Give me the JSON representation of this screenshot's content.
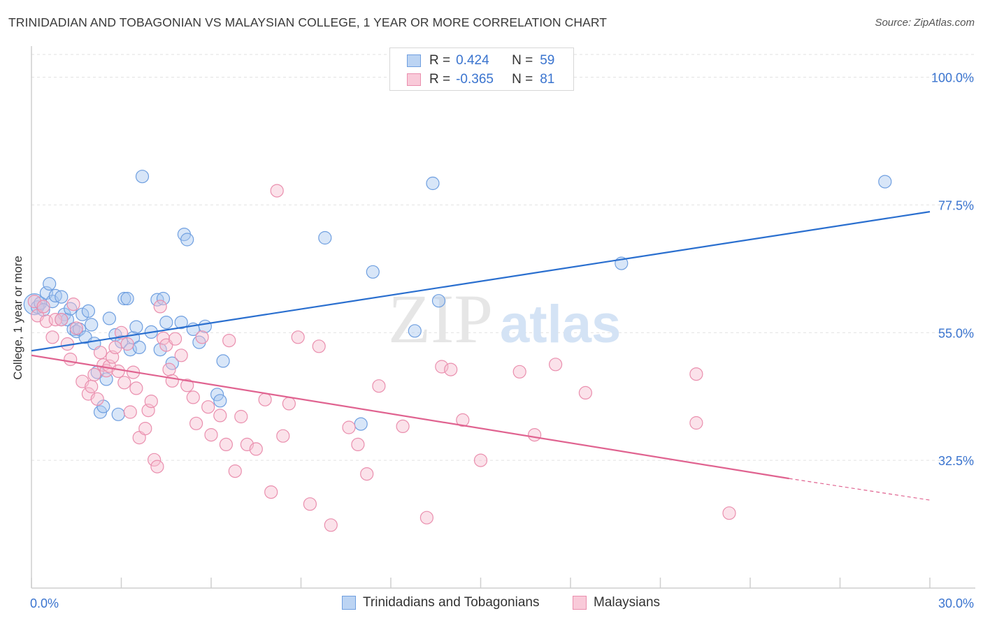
{
  "title": "TRINIDADIAN AND TOBAGONIAN VS MALAYSIAN COLLEGE, 1 YEAR OR MORE CORRELATION CHART",
  "source": "Source: ZipAtlas.com",
  "watermark": {
    "zip": "ZIP",
    "atlas": "atlas"
  },
  "legend": {
    "r_label": "R =",
    "n_label": "N =",
    "rows": [
      {
        "r": "0.424",
        "n": "59",
        "color": "#a9c8f0",
        "border": "#6f9fe0"
      },
      {
        "r": "-0.365",
        "n": "81",
        "color": "#f7bfd1",
        "border": "#ea8fae"
      }
    ]
  },
  "bottom_legend": [
    "Trinidadians and Tobagonians",
    "Malaysians"
  ],
  "chart_data": {
    "type": "scatter",
    "title": "TRINIDADIAN AND TOBAGONIAN VS MALAYSIAN COLLEGE, 1 YEAR OR MORE CORRELATION CHART",
    "xlabel": "",
    "ylabel": "College, 1 year or more",
    "xlim": [
      0,
      30
    ],
    "ylim": [
      10,
      104
    ],
    "x_tick_labels": [
      "0.0%",
      "30.0%"
    ],
    "y_tick_values": [
      32.5,
      55.0,
      77.5,
      100.0
    ],
    "y_tick_labels": [
      "32.5%",
      "55.0%",
      "77.5%",
      "100.0%"
    ],
    "series": [
      {
        "name": "Trinidadians and Tobagonians",
        "color": "#6f9fe0",
        "fill": "#a9c8f0",
        "trend_color": "#2a6fcf",
        "trend": {
          "x": [
            0,
            30
          ],
          "y": [
            51.8,
            76.3
          ]
        },
        "points": [
          [
            0.1,
            60.0
          ],
          [
            0.2,
            59.5
          ],
          [
            0.3,
            60.2
          ],
          [
            0.4,
            59.0
          ],
          [
            0.5,
            62.0
          ],
          [
            0.6,
            63.6
          ],
          [
            0.7,
            60.5
          ],
          [
            0.8,
            61.5
          ],
          [
            1.0,
            61.3
          ],
          [
            1.1,
            58.2
          ],
          [
            1.2,
            57.3
          ],
          [
            1.3,
            59.2
          ],
          [
            1.4,
            55.6
          ],
          [
            1.5,
            55.2
          ],
          [
            1.6,
            55.6
          ],
          [
            1.7,
            58.2
          ],
          [
            1.8,
            54.2
          ],
          [
            1.9,
            58.8
          ],
          [
            2.0,
            56.4
          ],
          [
            2.1,
            53.1
          ],
          [
            2.2,
            48.0
          ],
          [
            2.3,
            41.0
          ],
          [
            2.4,
            42.0
          ],
          [
            2.5,
            46.8
          ],
          [
            2.6,
            57.5
          ],
          [
            2.8,
            54.6
          ],
          [
            2.9,
            40.6
          ],
          [
            3.0,
            53.4
          ],
          [
            3.1,
            61.0
          ],
          [
            3.2,
            61.0
          ],
          [
            3.3,
            52.0
          ],
          [
            3.4,
            54.1
          ],
          [
            3.5,
            56.0
          ],
          [
            3.6,
            52.4
          ],
          [
            3.7,
            82.5
          ],
          [
            4.0,
            55.1
          ],
          [
            4.2,
            60.8
          ],
          [
            4.4,
            61.0
          ],
          [
            4.3,
            52.0
          ],
          [
            4.5,
            56.8
          ],
          [
            4.7,
            49.6
          ],
          [
            5.0,
            56.8
          ],
          [
            5.1,
            72.3
          ],
          [
            5.2,
            71.4
          ],
          [
            5.4,
            55.6
          ],
          [
            5.6,
            53.3
          ],
          [
            5.8,
            56.1
          ],
          [
            6.2,
            44.1
          ],
          [
            6.3,
            43.0
          ],
          [
            6.4,
            50.0
          ],
          [
            9.8,
            71.7
          ],
          [
            11.0,
            38.9
          ],
          [
            11.4,
            65.7
          ],
          [
            12.8,
            55.3
          ],
          [
            13.4,
            81.3
          ],
          [
            13.6,
            60.6
          ],
          [
            19.7,
            67.2
          ],
          [
            28.5,
            81.6
          ],
          [
            1.0,
            57.3
          ]
        ]
      },
      {
        "name": "Malaysians",
        "color": "#ea8fae",
        "fill": "#f7bfd1",
        "trend_color": "#e06390",
        "trend": {
          "x": [
            0,
            25.3
          ],
          "y": [
            51.0,
            29.3
          ]
        },
        "trend_dashed": {
          "x": [
            25.3,
            30
          ],
          "y": [
            29.3,
            25.5
          ]
        },
        "points": [
          [
            0.1,
            60.5
          ],
          [
            0.2,
            58.0
          ],
          [
            0.4,
            59.6
          ],
          [
            0.5,
            57.0
          ],
          [
            0.7,
            54.2
          ],
          [
            0.8,
            57.3
          ],
          [
            1.0,
            57.3
          ],
          [
            1.2,
            53.0
          ],
          [
            1.3,
            50.3
          ],
          [
            1.4,
            60.0
          ],
          [
            1.5,
            55.8
          ],
          [
            1.7,
            46.4
          ],
          [
            1.9,
            44.2
          ],
          [
            2.0,
            45.5
          ],
          [
            2.1,
            47.6
          ],
          [
            2.2,
            43.3
          ],
          [
            2.3,
            51.5
          ],
          [
            2.4,
            49.3
          ],
          [
            2.5,
            48.3
          ],
          [
            2.6,
            49.1
          ],
          [
            2.7,
            50.7
          ],
          [
            2.8,
            52.4
          ],
          [
            2.9,
            48.2
          ],
          [
            3.0,
            55.0
          ],
          [
            3.1,
            46.2
          ],
          [
            3.2,
            53.0
          ],
          [
            3.3,
            41.0
          ],
          [
            3.4,
            48.0
          ],
          [
            3.5,
            45.2
          ],
          [
            3.6,
            36.5
          ],
          [
            3.8,
            38.1
          ],
          [
            3.9,
            41.3
          ],
          [
            4.0,
            42.9
          ],
          [
            4.1,
            32.6
          ],
          [
            4.2,
            31.4
          ],
          [
            4.3,
            59.6
          ],
          [
            4.4,
            54.0
          ],
          [
            4.5,
            52.8
          ],
          [
            4.6,
            48.5
          ],
          [
            4.7,
            46.5
          ],
          [
            4.8,
            53.9
          ],
          [
            5.0,
            51.0
          ],
          [
            5.2,
            45.7
          ],
          [
            5.4,
            43.6
          ],
          [
            5.5,
            39.0
          ],
          [
            5.7,
            54.2
          ],
          [
            5.9,
            41.9
          ],
          [
            6.0,
            37.0
          ],
          [
            6.3,
            40.4
          ],
          [
            6.5,
            35.3
          ],
          [
            6.6,
            53.6
          ],
          [
            6.8,
            30.6
          ],
          [
            7.0,
            40.2
          ],
          [
            7.2,
            35.3
          ],
          [
            7.5,
            34.5
          ],
          [
            7.8,
            43.2
          ],
          [
            8.0,
            26.9
          ],
          [
            8.2,
            80.0
          ],
          [
            8.4,
            36.8
          ],
          [
            8.6,
            42.5
          ],
          [
            8.9,
            54.2
          ],
          [
            9.3,
            24.8
          ],
          [
            9.6,
            52.6
          ],
          [
            10.0,
            21.1
          ],
          [
            10.6,
            38.3
          ],
          [
            10.9,
            35.3
          ],
          [
            11.2,
            30.1
          ],
          [
            11.6,
            45.6
          ],
          [
            12.4,
            38.5
          ],
          [
            13.2,
            22.4
          ],
          [
            13.7,
            49.0
          ],
          [
            14.0,
            48.5
          ],
          [
            14.4,
            39.6
          ],
          [
            15.0,
            32.5
          ],
          [
            16.3,
            48.1
          ],
          [
            16.8,
            37.0
          ],
          [
            17.5,
            49.4
          ],
          [
            18.5,
            44.4
          ],
          [
            22.2,
            39.1
          ],
          [
            22.2,
            47.7
          ],
          [
            23.3,
            23.2
          ]
        ]
      }
    ]
  }
}
